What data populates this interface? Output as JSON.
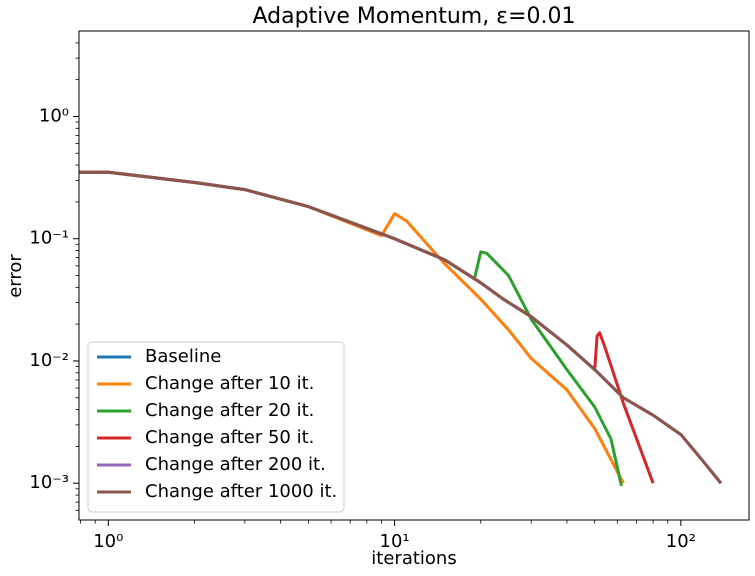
{
  "chart_data": {
    "type": "line",
    "title": "Adaptive Momentum, ε=0.01",
    "x_label": "iterations",
    "y_label": "error",
    "xscale": "log",
    "yscale": "log",
    "xlim": [
      0.79,
      173
    ],
    "ylim": [
      0.0005,
      5
    ],
    "xticks": [
      {
        "value": 1,
        "label": "10⁰"
      },
      {
        "value": 10,
        "label": "10¹"
      },
      {
        "value": 100,
        "label": "10²"
      }
    ],
    "yticks": [
      {
        "value": 0.001,
        "label": "10⁻³"
      },
      {
        "value": 0.01,
        "label": "10⁻²"
      },
      {
        "value": 0.1,
        "label": "10⁻¹"
      },
      {
        "value": 1,
        "label": "10⁰"
      }
    ],
    "legend": "lower left",
    "series": [
      {
        "name": "Baseline",
        "color": "#1f77b4",
        "x": [
          0.79,
          1,
          2,
          3,
          5,
          10,
          15,
          20,
          24,
          30,
          40,
          50,
          63,
          80,
          100,
          120,
          138
        ],
        "values": [
          0.35,
          0.35,
          0.288,
          0.252,
          0.183,
          0.1,
          0.067,
          0.0436,
          0.032,
          0.023,
          0.0135,
          0.0085,
          0.005,
          0.0036,
          0.0025,
          0.0015,
          0.001
        ]
      },
      {
        "name": "Change after 10 it.",
        "color": "#ff7f0e",
        "x": [
          0.79,
          1,
          2,
          3,
          5,
          9,
          10,
          11,
          13,
          15,
          20,
          25,
          30,
          40,
          50,
          63
        ],
        "values": [
          0.35,
          0.35,
          0.288,
          0.252,
          0.183,
          0.106,
          0.16,
          0.14,
          0.09,
          0.062,
          0.032,
          0.018,
          0.0105,
          0.0058,
          0.0028,
          0.001
        ]
      },
      {
        "name": "Change after 20 it.",
        "color": "#2ca02c",
        "x": [
          0.79,
          1,
          2,
          3,
          5,
          10,
          15,
          19,
          20,
          21,
          25,
          30,
          40,
          50,
          57,
          62
        ],
        "values": [
          0.35,
          0.35,
          0.288,
          0.252,
          0.183,
          0.1,
          0.067,
          0.047,
          0.078,
          0.076,
          0.05,
          0.022,
          0.0085,
          0.0042,
          0.0023,
          0.00095
        ]
      },
      {
        "name": "Change after 50 it.",
        "color": "#d62728",
        "x": [
          0.79,
          1,
          2,
          3,
          5,
          10,
          15,
          20,
          24,
          30,
          40,
          50,
          51,
          52,
          54,
          63,
          80
        ],
        "values": [
          0.35,
          0.35,
          0.288,
          0.252,
          0.183,
          0.1,
          0.067,
          0.0436,
          0.032,
          0.023,
          0.0135,
          0.0085,
          0.016,
          0.017,
          0.0135,
          0.0045,
          0.001
        ]
      },
      {
        "name": "Change after 200 it.",
        "color": "#9467bd",
        "x": [
          0.79,
          1,
          2,
          3,
          5,
          10,
          15,
          20,
          24,
          30,
          40,
          50,
          63,
          80,
          100,
          120,
          138
        ],
        "values": [
          0.35,
          0.35,
          0.288,
          0.252,
          0.183,
          0.1,
          0.067,
          0.0436,
          0.032,
          0.023,
          0.0135,
          0.0085,
          0.005,
          0.0036,
          0.0025,
          0.0015,
          0.001
        ]
      },
      {
        "name": "Change after 1000 it.",
        "color": "#8c564b",
        "x": [
          0.79,
          1,
          2,
          3,
          5,
          10,
          15,
          20,
          24,
          30,
          40,
          50,
          63,
          80,
          100,
          120,
          138
        ],
        "values": [
          0.35,
          0.35,
          0.288,
          0.252,
          0.183,
          0.1,
          0.067,
          0.0436,
          0.032,
          0.023,
          0.0135,
          0.0085,
          0.005,
          0.0036,
          0.0025,
          0.0015,
          0.001
        ]
      }
    ]
  }
}
